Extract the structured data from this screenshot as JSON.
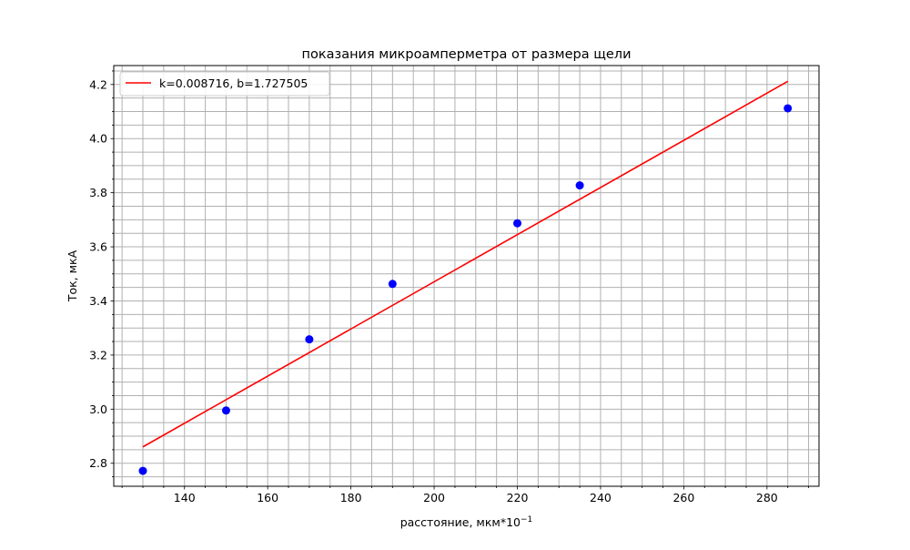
{
  "chart_data": {
    "type": "scatter",
    "title": "показания микроамперметра от размера щели",
    "xlabel": "расстояние, мкм*10",
    "xlabel_superscript": "−1",
    "ylabel": "Ток, мкА",
    "xlim": [
      123,
      292.5
    ],
    "ylim": [
      2.715,
      4.27
    ],
    "x_major_ticks": [
      140,
      160,
      180,
      200,
      220,
      240,
      260,
      280
    ],
    "x_minor_step": 5,
    "y_major_ticks": [
      2.8,
      3.0,
      3.2,
      3.4,
      3.6,
      3.8,
      4.0,
      4.2
    ],
    "y_minor_step": 0.05,
    "x_tick_labels": [
      "140",
      "160",
      "180",
      "200",
      "220",
      "240",
      "260",
      "280"
    ],
    "y_tick_labels": [
      "2.8",
      "3.0",
      "3.2",
      "3.4",
      "3.6",
      "3.8",
      "4.0",
      "4.2"
    ],
    "grid": true,
    "grid_minor": true,
    "legend_position": "upper-left",
    "series": [
      {
        "kind": "points",
        "color": "#0000ff",
        "points": [
          {
            "x": 130,
            "y": 2.772
          },
          {
            "x": 150,
            "y": 2.995
          },
          {
            "x": 170,
            "y": 3.258
          },
          {
            "x": 190,
            "y": 3.463
          },
          {
            "x": 220,
            "y": 3.687
          },
          {
            "x": 235,
            "y": 3.827
          },
          {
            "x": 285,
            "y": 4.112
          }
        ]
      },
      {
        "kind": "line",
        "name": "k=0.008716, b=1.727505",
        "color": "#ff0000",
        "slope": 0.008716,
        "intercept": 1.727505,
        "x_range": [
          130,
          285
        ]
      }
    ]
  }
}
